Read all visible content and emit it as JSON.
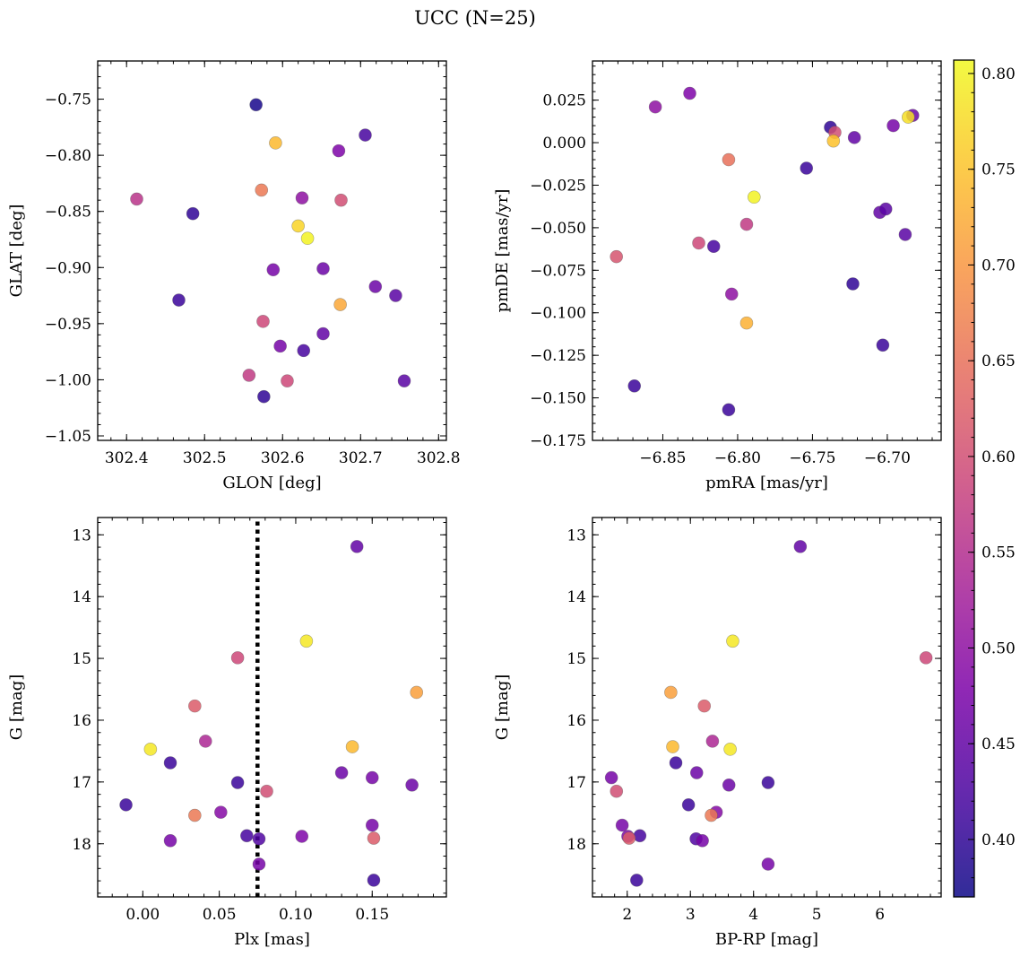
{
  "figure": {
    "title": "UCC (N=25)"
  },
  "colorbar": {
    "cmap": "plasma",
    "range": [
      0.37,
      0.807
    ],
    "ticks": [
      0.4,
      0.45,
      0.5,
      0.55,
      0.6,
      0.65,
      0.7,
      0.75,
      0.8
    ],
    "tick_labels": [
      "0.40",
      "0.45",
      "0.50",
      "0.55",
      "0.60",
      "0.65",
      "0.70",
      "0.75",
      "0.80"
    ],
    "label": ""
  },
  "chart_data": [
    {
      "type": "scatter",
      "xlabel": "GLON [deg]",
      "ylabel": "GLAT [deg]",
      "xlim": [
        302.363,
        302.81
      ],
      "ylim": [
        -1.054,
        -0.716
      ],
      "y_inverted": false,
      "xticks": [
        302.4,
        302.5,
        302.6,
        302.7,
        302.8
      ],
      "xtick_labels": [
        "302.4",
        "302.5",
        "302.6",
        "302.7",
        "302.8"
      ],
      "yticks": [
        -1.05,
        -1.0,
        -0.95,
        -0.9,
        -0.85,
        -0.8,
        -0.75
      ],
      "ytick_labels": [
        "−1.05",
        "−1.00",
        "−0.95",
        "−0.90",
        "−0.85",
        "−0.80",
        "−0.75"
      ],
      "points": [
        {
          "x": 302.566,
          "y": -0.755,
          "c": 0.38
        },
        {
          "x": 302.706,
          "y": -0.782,
          "c": 0.42
        },
        {
          "x": 302.591,
          "y": -0.789,
          "c": 0.74
        },
        {
          "x": 302.672,
          "y": -0.796,
          "c": 0.48
        },
        {
          "x": 302.573,
          "y": -0.831,
          "c": 0.66
        },
        {
          "x": 302.413,
          "y": -0.839,
          "c": 0.56
        },
        {
          "x": 302.625,
          "y": -0.838,
          "c": 0.5
        },
        {
          "x": 302.675,
          "y": -0.84,
          "c": 0.6
        },
        {
          "x": 302.485,
          "y": -0.852,
          "c": 0.4
        },
        {
          "x": 302.62,
          "y": -0.863,
          "c": 0.77
        },
        {
          "x": 302.632,
          "y": -0.874,
          "c": 0.8
        },
        {
          "x": 302.588,
          "y": -0.902,
          "c": 0.47
        },
        {
          "x": 302.652,
          "y": -0.901,
          "c": 0.46
        },
        {
          "x": 302.719,
          "y": -0.917,
          "c": 0.46
        },
        {
          "x": 302.745,
          "y": -0.925,
          "c": 0.44
        },
        {
          "x": 302.467,
          "y": -0.929,
          "c": 0.41
        },
        {
          "x": 302.674,
          "y": -0.933,
          "c": 0.72
        },
        {
          "x": 302.575,
          "y": -0.948,
          "c": 0.59
        },
        {
          "x": 302.652,
          "y": -0.959,
          "c": 0.45
        },
        {
          "x": 302.597,
          "y": -0.97,
          "c": 0.47
        },
        {
          "x": 302.627,
          "y": -0.974,
          "c": 0.42
        },
        {
          "x": 302.557,
          "y": -0.996,
          "c": 0.57
        },
        {
          "x": 302.606,
          "y": -1.001,
          "c": 0.59
        },
        {
          "x": 302.756,
          "y": -1.001,
          "c": 0.44
        },
        {
          "x": 302.576,
          "y": -1.015,
          "c": 0.4
        }
      ]
    },
    {
      "type": "scatter",
      "xlabel": "pmRA [mas/yr]",
      "ylabel": "pmDE [mas/yr]",
      "xlim": [
        -6.897,
        -6.664
      ],
      "ylim": [
        -0.175,
        0.048
      ],
      "y_inverted": false,
      "xticks": [
        -6.85,
        -6.8,
        -6.75,
        -6.7
      ],
      "xtick_labels": [
        "−6.85",
        "−6.80",
        "−6.75",
        "−6.70"
      ],
      "yticks": [
        -0.175,
        -0.15,
        -0.125,
        -0.1,
        -0.075,
        -0.05,
        -0.025,
        0.0,
        0.025
      ],
      "ytick_labels": [
        "−0.175",
        "−0.150",
        "−0.125",
        "−0.100",
        "−0.075",
        "−0.050",
        "−0.025",
        "0.000",
        "0.025"
      ],
      "points": [
        {
          "x": -6.832,
          "y": 0.029,
          "c": 0.48
        },
        {
          "x": -6.855,
          "y": 0.021,
          "c": 0.5
        },
        {
          "x": -6.683,
          "y": 0.016,
          "c": 0.46
        },
        {
          "x": -6.686,
          "y": 0.015,
          "c": 0.78
        },
        {
          "x": -6.738,
          "y": 0.009,
          "c": 0.4
        },
        {
          "x": -6.696,
          "y": 0.01,
          "c": 0.47
        },
        {
          "x": -6.735,
          "y": 0.006,
          "c": 0.6
        },
        {
          "x": -6.722,
          "y": 0.003,
          "c": 0.45
        },
        {
          "x": -6.736,
          "y": 0.001,
          "c": 0.75
        },
        {
          "x": -6.806,
          "y": -0.01,
          "c": 0.65
        },
        {
          "x": -6.754,
          "y": -0.015,
          "c": 0.41
        },
        {
          "x": -6.789,
          "y": -0.032,
          "c": 0.8
        },
        {
          "x": -6.705,
          "y": -0.041,
          "c": 0.45
        },
        {
          "x": -6.701,
          "y": -0.039,
          "c": 0.44
        },
        {
          "x": -6.794,
          "y": -0.048,
          "c": 0.57
        },
        {
          "x": -6.688,
          "y": -0.054,
          "c": 0.44
        },
        {
          "x": -6.826,
          "y": -0.059,
          "c": 0.59
        },
        {
          "x": -6.816,
          "y": -0.061,
          "c": 0.42
        },
        {
          "x": -6.881,
          "y": -0.067,
          "c": 0.61
        },
        {
          "x": -6.723,
          "y": -0.083,
          "c": 0.4
        },
        {
          "x": -6.804,
          "y": -0.089,
          "c": 0.5
        },
        {
          "x": -6.794,
          "y": -0.106,
          "c": 0.73
        },
        {
          "x": -6.703,
          "y": -0.119,
          "c": 0.41
        },
        {
          "x": -6.869,
          "y": -0.143,
          "c": 0.41
        },
        {
          "x": -6.806,
          "y": -0.157,
          "c": 0.41
        }
      ]
    },
    {
      "type": "scatter",
      "xlabel": "Plx [mas]",
      "ylabel": "G [mag]",
      "xlim": [
        -0.0295,
        0.1985
      ],
      "ylim": [
        18.86,
        12.72
      ],
      "y_inverted": true,
      "vline": {
        "x": 0.075,
        "y0": 18.86,
        "y1": 12.72,
        "style": "dotted"
      },
      "xticks": [
        0.0,
        0.05,
        0.1,
        0.15
      ],
      "xtick_labels": [
        "0.00",
        "0.05",
        "0.10",
        "0.15"
      ],
      "yticks": [
        13,
        14,
        15,
        16,
        17,
        18
      ],
      "ytick_labels": [
        "13",
        "14",
        "15",
        "16",
        "17",
        "18"
      ],
      "points": [
        {
          "x": 0.14,
          "y": 13.19,
          "c": 0.45
        },
        {
          "x": 0.107,
          "y": 14.72,
          "c": 0.79
        },
        {
          "x": 0.062,
          "y": 14.99,
          "c": 0.59
        },
        {
          "x": 0.179,
          "y": 15.55,
          "c": 0.71
        },
        {
          "x": 0.034,
          "y": 15.77,
          "c": 0.62
        },
        {
          "x": 0.041,
          "y": 16.34,
          "c": 0.54
        },
        {
          "x": 0.137,
          "y": 16.43,
          "c": 0.74
        },
        {
          "x": 0.005,
          "y": 16.47,
          "c": 0.79
        },
        {
          "x": 0.018,
          "y": 16.69,
          "c": 0.41
        },
        {
          "x": 0.13,
          "y": 16.85,
          "c": 0.46
        },
        {
          "x": 0.15,
          "y": 16.93,
          "c": 0.47
        },
        {
          "x": 0.062,
          "y": 17.01,
          "c": 0.41
        },
        {
          "x": 0.176,
          "y": 17.05,
          "c": 0.46
        },
        {
          "x": 0.081,
          "y": 17.15,
          "c": 0.6
        },
        {
          "x": -0.011,
          "y": 17.37,
          "c": 0.41
        },
        {
          "x": 0.051,
          "y": 17.49,
          "c": 0.49
        },
        {
          "x": 0.034,
          "y": 17.54,
          "c": 0.66
        },
        {
          "x": 0.15,
          "y": 17.7,
          "c": 0.47
        },
        {
          "x": 0.068,
          "y": 17.87,
          "c": 0.42
        },
        {
          "x": 0.104,
          "y": 17.88,
          "c": 0.48
        },
        {
          "x": 0.151,
          "y": 17.91,
          "c": 0.62
        },
        {
          "x": 0.076,
          "y": 17.92,
          "c": 0.43
        },
        {
          "x": 0.018,
          "y": 17.95,
          "c": 0.47
        },
        {
          "x": 0.076,
          "y": 18.33,
          "c": 0.47
        },
        {
          "x": 0.151,
          "y": 18.59,
          "c": 0.41
        }
      ]
    },
    {
      "type": "scatter",
      "xlabel": "BP-RP [mag]",
      "ylabel": "G [mag]",
      "xlim": [
        1.45,
        6.97
      ],
      "ylim": [
        18.86,
        12.72
      ],
      "y_inverted": true,
      "xticks": [
        2,
        3,
        4,
        5,
        6
      ],
      "xtick_labels": [
        "2",
        "3",
        "4",
        "5",
        "6"
      ],
      "yticks": [
        13,
        14,
        15,
        16,
        17,
        18
      ],
      "ytick_labels": [
        "13",
        "14",
        "15",
        "16",
        "17",
        "18"
      ],
      "points": [
        {
          "x": 4.74,
          "y": 13.19,
          "c": 0.45
        },
        {
          "x": 3.67,
          "y": 14.72,
          "c": 0.79
        },
        {
          "x": 6.73,
          "y": 14.99,
          "c": 0.59
        },
        {
          "x": 2.69,
          "y": 15.55,
          "c": 0.71
        },
        {
          "x": 3.22,
          "y": 15.77,
          "c": 0.62
        },
        {
          "x": 3.35,
          "y": 16.34,
          "c": 0.54
        },
        {
          "x": 2.72,
          "y": 16.43,
          "c": 0.74
        },
        {
          "x": 3.63,
          "y": 16.47,
          "c": 0.79
        },
        {
          "x": 2.77,
          "y": 16.69,
          "c": 0.41
        },
        {
          "x": 3.1,
          "y": 16.85,
          "c": 0.46
        },
        {
          "x": 1.75,
          "y": 16.93,
          "c": 0.47
        },
        {
          "x": 4.23,
          "y": 17.01,
          "c": 0.41
        },
        {
          "x": 3.61,
          "y": 17.05,
          "c": 0.46
        },
        {
          "x": 1.83,
          "y": 17.15,
          "c": 0.6
        },
        {
          "x": 2.97,
          "y": 17.37,
          "c": 0.41
        },
        {
          "x": 3.41,
          "y": 17.49,
          "c": 0.49
        },
        {
          "x": 3.33,
          "y": 17.54,
          "c": 0.66
        },
        {
          "x": 1.92,
          "y": 17.7,
          "c": 0.47
        },
        {
          "x": 2.2,
          "y": 17.87,
          "c": 0.42
        },
        {
          "x": 2.01,
          "y": 17.88,
          "c": 0.48
        },
        {
          "x": 2.03,
          "y": 17.91,
          "c": 0.62
        },
        {
          "x": 3.09,
          "y": 17.92,
          "c": 0.43
        },
        {
          "x": 3.19,
          "y": 17.95,
          "c": 0.47
        },
        {
          "x": 4.23,
          "y": 18.33,
          "c": 0.47
        },
        {
          "x": 2.15,
          "y": 18.59,
          "c": 0.41
        }
      ]
    }
  ]
}
